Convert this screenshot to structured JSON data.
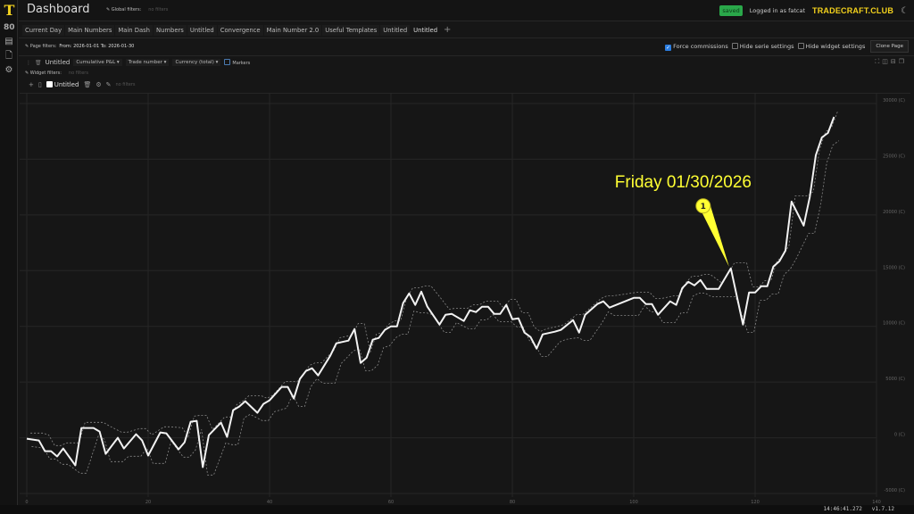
{
  "sidebar": {
    "logo": "T",
    "items": [
      {
        "icon": "dashboard-icon",
        "glyph": "80"
      },
      {
        "icon": "book-icon",
        "glyph": "▤"
      },
      {
        "icon": "document-icon",
        "glyph": "🗋"
      },
      {
        "icon": "gear-icon",
        "glyph": "⚙"
      }
    ]
  },
  "header": {
    "title": "Dashboard",
    "global_filters_label": "Global filters:",
    "global_filters_value": "no filters",
    "saved_badge": "saved",
    "logged_in": "Logged in as fatcat",
    "brand": "TRADECRAFT.CLUB",
    "theme_icon": "moon-icon"
  },
  "tabs": [
    "Current Day",
    "Main Numbers",
    "Main Dash",
    "Numbers",
    "Untitled",
    "Convergence",
    "Main Number 2.0",
    "Useful Templates",
    "Untitled",
    "Untitled"
  ],
  "active_tab": 9,
  "page_filters": {
    "label": "Page filters:",
    "value": "From: 2026-01-01 To: 2026-01-30"
  },
  "page_options": {
    "force_commissions": {
      "label": "Force commissions",
      "checked": true
    },
    "hide_serie": {
      "label": "Hide serie settings",
      "checked": false
    },
    "hide_widget": {
      "label": "Hide widget settings",
      "checked": false
    },
    "clone_label": "Clone Page"
  },
  "widget": {
    "title": "Untitled",
    "metric": "Cumulative P&L",
    "x_axis": "Trade number",
    "currency": "Currency (total)",
    "markers_label": "Markers",
    "markers_checked": false,
    "filters_label": "Widget filters:",
    "filters_value": "no filters"
  },
  "series": {
    "name": "Untitled",
    "checked": false,
    "filters_value": "no filters"
  },
  "status": {
    "time": "14:46:41.272",
    "version": "v1.7.12"
  },
  "chart_data": {
    "type": "line",
    "xlabel": "",
    "ylabel": "",
    "xlim": [
      0,
      140
    ],
    "ylim": [
      -5000,
      30000
    ],
    "xticks": [
      "0",
      "20",
      "40",
      "60",
      "80",
      "100",
      "120",
      "140"
    ],
    "yticks": [
      "30000 (C)",
      "25000 (C)",
      "20000 (C)",
      "15000 (C)",
      "10000 (C)",
      "5000 (C)",
      "0 (C)",
      "-5000 (C)"
    ],
    "grid": true,
    "series": [
      {
        "color": "#f2f2f2",
        "points": [
          [
            0,
            -80
          ],
          [
            2,
            -240
          ],
          [
            3,
            -1200
          ],
          [
            4,
            -1200
          ],
          [
            5,
            -1680
          ],
          [
            6,
            -960
          ],
          [
            8,
            -2480
          ],
          [
            9,
            880
          ],
          [
            11,
            880
          ],
          [
            12,
            560
          ],
          [
            13,
            -1440
          ],
          [
            15,
            0
          ],
          [
            16,
            -960
          ],
          [
            18,
            320
          ],
          [
            19,
            -240
          ],
          [
            20,
            -1600
          ],
          [
            22,
            480
          ],
          [
            23,
            400
          ],
          [
            25,
            -1040
          ],
          [
            26,
            -400
          ],
          [
            27,
            1440
          ],
          [
            28,
            1520
          ],
          [
            29,
            -2640
          ],
          [
            30,
            240
          ],
          [
            32,
            1360
          ],
          [
            33,
            80
          ],
          [
            34,
            2480
          ],
          [
            35,
            2800
          ],
          [
            36,
            3280
          ],
          [
            38,
            2240
          ],
          [
            39,
            3040
          ],
          [
            40,
            3360
          ],
          [
            42,
            4560
          ],
          [
            43,
            4560
          ],
          [
            44,
            3520
          ],
          [
            45,
            5280
          ],
          [
            46,
            6000
          ],
          [
            47,
            6240
          ],
          [
            48,
            5600
          ],
          [
            50,
            7360
          ],
          [
            51,
            8480
          ],
          [
            53,
            8720
          ],
          [
            54,
            9760
          ],
          [
            55,
            6720
          ],
          [
            56,
            7200
          ],
          [
            57,
            8800
          ],
          [
            58,
            8960
          ],
          [
            59,
            9680
          ],
          [
            60,
            10000
          ],
          [
            61,
            10000
          ],
          [
            62,
            12080
          ],
          [
            63,
            12960
          ],
          [
            64,
            11920
          ],
          [
            65,
            13120
          ],
          [
            66,
            11760
          ],
          [
            68,
            10160
          ],
          [
            69,
            11040
          ],
          [
            70,
            11120
          ],
          [
            72,
            10480
          ],
          [
            73,
            11440
          ],
          [
            74,
            11280
          ],
          [
            75,
            11760
          ],
          [
            76,
            11760
          ],
          [
            77,
            11120
          ],
          [
            78,
            11120
          ],
          [
            79,
            11920
          ],
          [
            80,
            10640
          ],
          [
            81,
            10720
          ],
          [
            82,
            9440
          ],
          [
            83,
            9040
          ],
          [
            84,
            8000
          ],
          [
            85,
            9280
          ],
          [
            87,
            9520
          ],
          [
            88,
            9680
          ],
          [
            90,
            10560
          ],
          [
            91,
            9440
          ],
          [
            92,
            11040
          ],
          [
            94,
            12000
          ],
          [
            95,
            12240
          ],
          [
            96,
            11680
          ],
          [
            100,
            12560
          ],
          [
            101,
            12560
          ],
          [
            102,
            12000
          ],
          [
            103,
            12000
          ],
          [
            104,
            11040
          ],
          [
            106,
            12240
          ],
          [
            107,
            11920
          ],
          [
            108,
            13440
          ],
          [
            109,
            14000
          ],
          [
            110,
            13680
          ],
          [
            111,
            14160
          ],
          [
            112,
            13360
          ],
          [
            114,
            13360
          ],
          [
            116,
            15200
          ],
          [
            118,
            10160
          ],
          [
            119,
            13040
          ],
          [
            120,
            13040
          ],
          [
            121,
            13600
          ],
          [
            122,
            13600
          ],
          [
            123,
            15360
          ],
          [
            124,
            15840
          ],
          [
            125,
            16800
          ],
          [
            126,
            21200
          ],
          [
            128,
            19040
          ],
          [
            129,
            21600
          ],
          [
            130,
            25360
          ],
          [
            131,
            26960
          ],
          [
            132,
            27360
          ],
          [
            133,
            28800
          ]
        ]
      }
    ],
    "annotation": {
      "text": "Friday 01/30/2026",
      "marker": "1",
      "x": 116,
      "y": 15200,
      "color": "#ffff33"
    }
  }
}
